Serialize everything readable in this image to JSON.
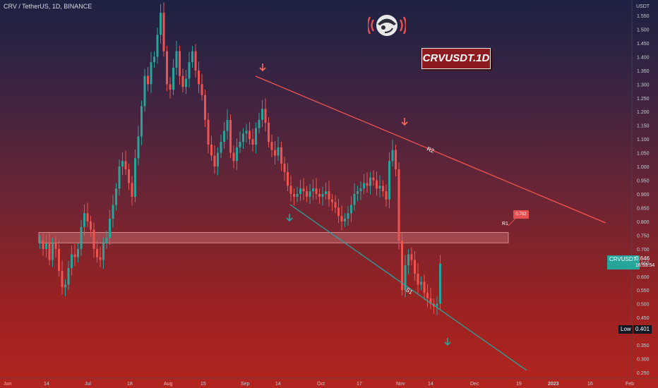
{
  "header": {
    "symbol_title": "CRV / TetherUS, 1D, BINANCE"
  },
  "badge": {
    "text": "CRVUSDT.1D"
  },
  "logo": {
    "icon": "monkey-head-broadcast-icon"
  },
  "price_tag": {
    "symbol": "CRVUSDT",
    "price": "0.646",
    "countdown": "16:53:54"
  },
  "low_tag": {
    "label": "Low",
    "value": "0.401"
  },
  "r1_tag": {
    "value": "0.762"
  },
  "colors": {
    "up": "#26a69a",
    "down": "#ef5350",
    "resistance": "#ef5350",
    "support": "#26a69a",
    "zone": "#e08a8a"
  },
  "chart_data": {
    "type": "candlestick",
    "title": "CRV / TetherUS, 1D, BINANCE",
    "y_axis": {
      "unit_label": "USDT",
      "ticks": [
        "1.550",
        "1.500",
        "1.450",
        "1.400",
        "1.350",
        "1.300",
        "1.250",
        "1.200",
        "1.150",
        "1.100",
        "1.050",
        "1.000",
        "0.950",
        "0.900",
        "0.850",
        "0.800",
        "0.750",
        "0.700",
        "0.650",
        "0.600",
        "0.550",
        "0.500",
        "0.450",
        "0.400",
        "0.350",
        "0.300",
        "0.250"
      ],
      "ylim": [
        0.24,
        1.57
      ]
    },
    "x_axis": {
      "ticks": [
        "Jun",
        "14",
        "Jul",
        "18",
        "Aug",
        "15",
        "Sep",
        "14",
        "Oct",
        "17",
        "Nov",
        "14",
        "Dec",
        "19",
        "2023",
        "16",
        "Feb"
      ]
    },
    "annotations": {
      "zone": {
        "label": "",
        "low": 0.722,
        "high": 0.76
      },
      "resistance_line": {
        "label": "R2"
      },
      "support_line": {
        "label": "S1"
      },
      "r1_label": "R1"
    },
    "candles_close": [
      0.73,
      0.7,
      0.72,
      0.66,
      0.72,
      0.7,
      0.62,
      0.56,
      0.57,
      0.63,
      0.68,
      0.67,
      0.7,
      0.78,
      0.83,
      0.8,
      0.77,
      0.7,
      0.67,
      0.66,
      0.72,
      0.74,
      0.81,
      0.86,
      0.92,
      1.0,
      1.02,
      0.99,
      0.94,
      0.89,
      1.03,
      1.11,
      1.22,
      1.33,
      1.3,
      1.38,
      1.4,
      1.48,
      1.56,
      1.42,
      1.3,
      1.28,
      1.36,
      1.42,
      1.33,
      1.29,
      1.32,
      1.38,
      1.42,
      1.35,
      1.3,
      1.26,
      1.17,
      1.08,
      1.04,
      1.0,
      1.05,
      1.09,
      1.13,
      1.17,
      1.05,
      1.02,
      1.07,
      1.09,
      1.12,
      1.13,
      1.1,
      1.08,
      1.14,
      1.17,
      1.21,
      1.16,
      1.09,
      1.06,
      1.04,
      1.07,
      1.01,
      0.98,
      0.93,
      0.9,
      0.89,
      0.9,
      0.92,
      0.91,
      0.89,
      0.91,
      0.92,
      0.9,
      0.89,
      0.9,
      0.91,
      0.88,
      0.87,
      0.85,
      0.82,
      0.8,
      0.81,
      0.83,
      0.86,
      0.9,
      0.91,
      0.92,
      0.94,
      0.93,
      0.96,
      0.95,
      0.92,
      0.93,
      0.91,
      0.88,
      1.02,
      1.06,
      0.99,
      0.73,
      0.55,
      0.64,
      0.68,
      0.66,
      0.61,
      0.57,
      0.58,
      0.54,
      0.52,
      0.5,
      0.49,
      0.5,
      0.646
    ]
  }
}
